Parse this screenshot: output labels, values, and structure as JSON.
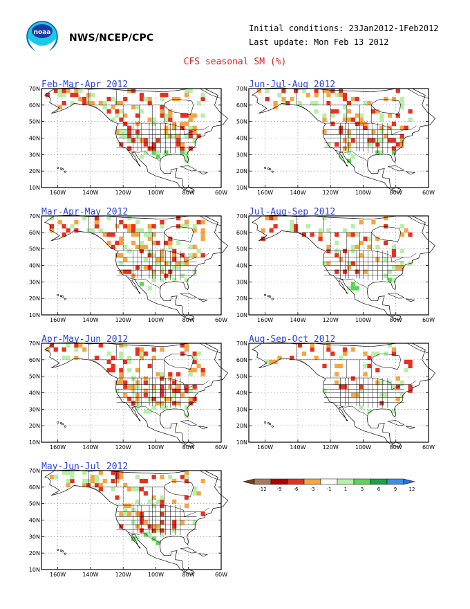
{
  "header": {
    "agency": "NWS/NCEP/CPC",
    "initial_conditions": "Initial conditions: 23Jan2012-1Feb2012",
    "last_update": "Last update: Mon Feb 13 2012",
    "title": "CFS seasonal SM (%)"
  },
  "axes": {
    "lat_labels": [
      "70N",
      "60N",
      "50N",
      "40N",
      "30N",
      "20N",
      "10N"
    ],
    "lon_labels": [
      "160W",
      "140W",
      "120W",
      "100W",
      "80W",
      "60W"
    ]
  },
  "panels": [
    {
      "title": "Feb-Mar-Apr 2012",
      "intensity": 1.0
    },
    {
      "title": "Jun-Jul-Aug 2012",
      "intensity": 0.7
    },
    {
      "title": "Mar-Apr-May 2012",
      "intensity": 0.95
    },
    {
      "title": "Jul-Aug-Sep 2012",
      "intensity": 0.55
    },
    {
      "title": "Apr-May-Jun 2012",
      "intensity": 0.85
    },
    {
      "title": "Aug-Sep-Oct 2012",
      "intensity": 0.5
    },
    {
      "title": "May-Jun-Jul 2012",
      "intensity": 0.75
    }
  ],
  "legend": {
    "ticks": [
      "-12",
      "-9",
      "-6",
      "-3",
      "-1",
      "1",
      "3",
      "6",
      "9",
      "12"
    ],
    "colors": [
      "#7a3b1f",
      "#a87a60",
      "#b00000",
      "#e83020",
      "#f5a542",
      "#ffffff",
      "#b6f0a8",
      "#5fd35b",
      "#1aa24a",
      "#3d8fe6",
      "#2a6ee0"
    ]
  },
  "colors": {
    "title_red": "#e32020",
    "panel_title_blue": "#2b3fe0",
    "ocean": "#ffffff",
    "grid": "#888888"
  }
}
